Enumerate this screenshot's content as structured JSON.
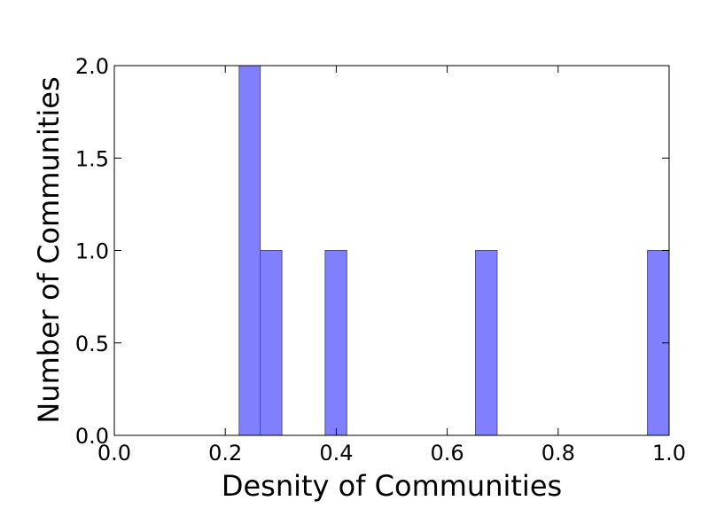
{
  "chart_data": {
    "type": "bar",
    "histogram": true,
    "xlabel": "Desnity of Communities",
    "ylabel": "Number of Communities",
    "xlim": [
      0.0,
      1.0
    ],
    "ylim": [
      0.0,
      2.0
    ],
    "xticks": [
      "0.0",
      "0.2",
      "0.4",
      "0.6",
      "0.8",
      "1.0"
    ],
    "yticks": [
      "0.0",
      "0.5",
      "1.0",
      "1.5",
      "2.0"
    ],
    "bins": [
      {
        "x0": 0.225,
        "x1": 0.263,
        "value": 2
      },
      {
        "x0": 0.263,
        "x1": 0.302,
        "value": 1
      },
      {
        "x0": 0.38,
        "x1": 0.419,
        "value": 1
      },
      {
        "x0": 0.651,
        "x1": 0.69,
        "value": 1
      },
      {
        "x0": 0.961,
        "x1": 1.0,
        "value": 1
      }
    ],
    "bar_color": "#8080ff",
    "bar_edge_color": "#4d4d99",
    "grid": false,
    "legend": "none"
  }
}
